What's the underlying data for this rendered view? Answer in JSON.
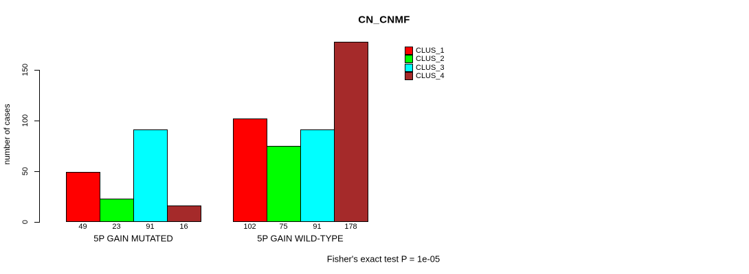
{
  "chart_data": {
    "type": "bar",
    "title": "CN_CNMF",
    "ylabel": "number of cases",
    "footer": "Fisher's exact test P = 1e-05",
    "categories": [
      "5P GAIN MUTATED",
      "5P GAIN WILD-TYPE"
    ],
    "series": [
      {
        "name": "CLUS_1",
        "color": "#FF0000",
        "values": [
          49,
          102
        ]
      },
      {
        "name": "CLUS_2",
        "color": "#00FF00",
        "values": [
          23,
          75
        ]
      },
      {
        "name": "CLUS_3",
        "color": "#00FFFF",
        "values": [
          91,
          91
        ]
      },
      {
        "name": "CLUS_4",
        "color": "#A52A2A",
        "values": [
          16,
          178
        ]
      }
    ],
    "bar_value_labels": [
      [
        49,
        23,
        91,
        16
      ],
      [
        102,
        75,
        91,
        178
      ]
    ],
    "yticks": [
      0,
      50,
      100,
      150
    ],
    "ylim": [
      0,
      180
    ],
    "grid": false,
    "legend_position": "right-top",
    "colors": {
      "text": "#000000",
      "background": "#FFFFFF",
      "bar_border": "#000000"
    }
  }
}
